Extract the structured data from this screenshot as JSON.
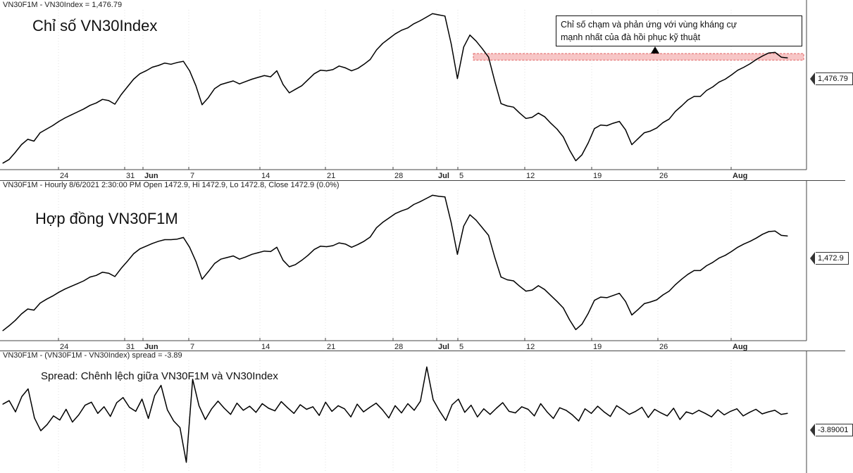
{
  "panels": {
    "index": {
      "header": "VN30F1M - VN30Index = 1,476.79",
      "title": "Chỉ số VN30Index",
      "last_value_label": "1,476.79",
      "annotation_line1": "Chỉ số chạm và phản ứng với vùng kháng cự",
      "annotation_line2": "mạnh nhất của đà hồi phục kỹ thuật"
    },
    "future": {
      "header": "VN30F1M - Hourly 8/6/2021 2:30:00 PM Open 1472.9, Hi 1472.9, Lo 1472.8, Close 1472.9 (0.0%)",
      "title": "Hợp đồng VN30F1M",
      "last_value_label": "1,472.9"
    },
    "spread": {
      "header": "VN30F1M - (VN30F1M - VN30Index) spread = -3.89",
      "title": "Spread: Chênh lệch giữa VN30F1M và VN30Index",
      "last_value_label": "-3.89001"
    }
  },
  "x_axis_ticks": [
    "24",
    "31",
    "Jun",
    "7",
    "14",
    "21",
    "28",
    "Jul",
    "5",
    "12",
    "19",
    "26",
    "Aug"
  ],
  "colors": {
    "line": "#000000",
    "resistance_zone_fill": "#f7c6c6",
    "resistance_zone_border": "#e06060",
    "grid": "#cccccc"
  },
  "chart_data": [
    {
      "type": "line",
      "series": [
        {
          "name": "VN30Index",
          "values": [
            1300,
            1306,
            1318,
            1331,
            1340,
            1337,
            1351,
            1357,
            1363,
            1370,
            1376,
            1381,
            1386,
            1391,
            1397,
            1401,
            1407,
            1405,
            1399,
            1415,
            1428,
            1441,
            1450,
            1455,
            1461,
            1464,
            1468,
            1466,
            1469,
            1471,
            1455,
            1430,
            1398,
            1410,
            1425,
            1432,
            1435,
            1438,
            1433,
            1437,
            1441,
            1444,
            1447,
            1445,
            1455,
            1432,
            1418,
            1424,
            1430,
            1440,
            1450,
            1456,
            1455,
            1457,
            1463,
            1460,
            1455,
            1459,
            1466,
            1474,
            1490,
            1501,
            1509,
            1517,
            1523,
            1527,
            1534,
            1539,
            1545,
            1551,
            1549,
            1547,
            1500,
            1442,
            1495,
            1515,
            1505,
            1492,
            1478,
            1437,
            1400,
            1396,
            1394,
            1384,
            1375,
            1377,
            1384,
            1378,
            1367,
            1357,
            1344,
            1322,
            1304,
            1314,
            1334,
            1358,
            1364,
            1363,
            1367,
            1370,
            1356,
            1331,
            1341,
            1351,
            1354,
            1359,
            1368,
            1374,
            1387,
            1396,
            1406,
            1412,
            1412,
            1422,
            1428,
            1436,
            1441,
            1448,
            1456,
            1461,
            1467,
            1474,
            1480,
            1485,
            1486,
            1478,
            1476.79
          ]
        }
      ],
      "ylim": [
        1295,
        1555
      ],
      "resistance_zone": [
        1473,
        1484
      ]
    },
    {
      "type": "line",
      "series": [
        {
          "name": "VN30F1M",
          "values": [
            1298,
            1307,
            1317,
            1329,
            1338,
            1336,
            1349,
            1356,
            1362,
            1369,
            1375,
            1380,
            1385,
            1390,
            1397,
            1400,
            1406,
            1404,
            1398,
            1413,
            1426,
            1440,
            1449,
            1454,
            1459,
            1463,
            1466,
            1466,
            1467,
            1470,
            1452,
            1426,
            1393,
            1407,
            1422,
            1430,
            1433,
            1436,
            1430,
            1434,
            1439,
            1442,
            1445,
            1444,
            1452,
            1428,
            1416,
            1420,
            1428,
            1437,
            1448,
            1454,
            1453,
            1455,
            1460,
            1458,
            1452,
            1457,
            1463,
            1471,
            1488,
            1498,
            1506,
            1514,
            1519,
            1523,
            1531,
            1536,
            1542,
            1548,
            1546,
            1545,
            1497,
            1439,
            1491,
            1512,
            1502,
            1488,
            1474,
            1433,
            1397,
            1392,
            1390,
            1380,
            1371,
            1373,
            1381,
            1374,
            1363,
            1352,
            1340,
            1318,
            1300,
            1310,
            1330,
            1354,
            1360,
            1359,
            1363,
            1367,
            1352,
            1327,
            1337,
            1348,
            1351,
            1355,
            1364,
            1371,
            1383,
            1393,
            1402,
            1409,
            1409,
            1418,
            1424,
            1432,
            1437,
            1444,
            1452,
            1458,
            1463,
            1469,
            1476,
            1481,
            1482,
            1474,
            1472.9
          ]
        }
      ],
      "ylim": [
        1290,
        1555
      ]
    },
    {
      "type": "line",
      "series": [
        {
          "name": "spread",
          "values": [
            -2.1,
            -1.4,
            -3.6,
            -0.6,
            0.9,
            -4.8,
            -7.3,
            -6.1,
            -4.4,
            -5.2,
            -3.1,
            -5.6,
            -4.2,
            -2.3,
            -1.7,
            -3.9,
            -2.6,
            -4.5,
            -1.8,
            -0.8,
            -2.7,
            -3.5,
            -1.1,
            -4.9,
            -0.4,
            1.6,
            -3.2,
            -5.4,
            -6.7,
            -13.5,
            2.8,
            -2.4,
            -5.1,
            -3.0,
            -1.5,
            -2.9,
            -4.1,
            -1.9,
            -3.3,
            -2.5,
            -3.7,
            -2.0,
            -2.9,
            -3.4,
            -1.6,
            -2.8,
            -3.9,
            -2.2,
            -3.1,
            -2.6,
            -4.3,
            -1.7,
            -3.5,
            -2.4,
            -3.0,
            -4.6,
            -2.1,
            -3.6,
            -2.7,
            -1.9,
            -3.2,
            -4.8,
            -2.4,
            -3.8,
            -2.0,
            -3.3,
            -1.5,
            5.2,
            -1.2,
            -3.4,
            -5.3,
            -2.2,
            -1.1,
            -3.7,
            -2.3,
            -4.6,
            -3.0,
            -4.1,
            -2.9,
            -1.8,
            -3.5,
            -3.8,
            -2.6,
            -3.1,
            -4.4,
            -2.0,
            -3.6,
            -4.9,
            -2.8,
            -3.3,
            -4.2,
            -5.4,
            -3.0,
            -3.9,
            -2.5,
            -3.6,
            -4.5,
            -2.4,
            -3.2,
            -4.1,
            -3.5,
            -2.7,
            -4.7,
            -3.1,
            -3.8,
            -4.4,
            -2.9,
            -5.1,
            -3.6,
            -4.0,
            -3.3,
            -3.9,
            -4.6,
            -3.2,
            -4.2,
            -3.5,
            -3.0,
            -4.4,
            -3.7,
            -3.1,
            -4.0,
            -3.6,
            -3.3,
            -4.1,
            -3.89001
          ]
        }
      ],
      "ylim": [
        -14.5,
        6.5
      ]
    }
  ]
}
